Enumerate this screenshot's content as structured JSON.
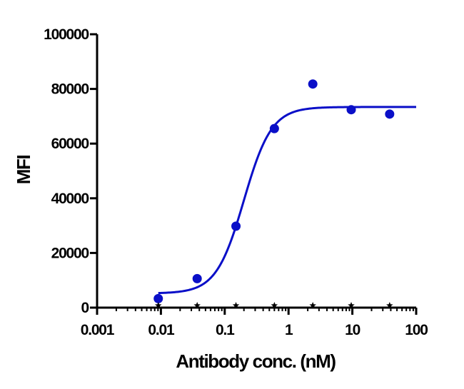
{
  "chart_data": {
    "type": "scatter",
    "title": "",
    "xlabel": "Antibody conc. (nM)",
    "ylabel": "MFI",
    "x_scale": "log",
    "xlim": [
      0.001,
      100
    ],
    "ylim": [
      0,
      100000
    ],
    "x_tick_labels": [
      "0.001",
      "0.01",
      "0.1",
      "1",
      "10",
      "100"
    ],
    "x_ticks": [
      0.001,
      0.01,
      0.1,
      1,
      10,
      100
    ],
    "y_tick_labels": [
      "0",
      "20000",
      "40000",
      "60000",
      "80000",
      "100000"
    ],
    "y_ticks": [
      0,
      20000,
      40000,
      60000,
      80000,
      100000
    ],
    "grid": false,
    "series": [
      {
        "color": "#0A0FC8",
        "points": [
          {
            "x": 0.0091,
            "y": 3300
          },
          {
            "x": 0.037,
            "y": 10600
          },
          {
            "x": 0.15,
            "y": 29800
          },
          {
            "x": 0.6,
            "y": 65500
          },
          {
            "x": 2.4,
            "y": 81800
          },
          {
            "x": 9.6,
            "y": 72400
          },
          {
            "x": 38.4,
            "y": 70800
          }
        ],
        "fit": {
          "model": "four-parameter logistic",
          "bottom": 5200,
          "top": 73400,
          "ec50": 0.2,
          "hill_slope": 2.0,
          "x_range": [
            0.0091,
            100
          ]
        }
      },
      {
        "color": "#000000",
        "marker": "star",
        "points": [
          {
            "x": 0.0091,
            "y": 0
          },
          {
            "x": 0.037,
            "y": 0
          },
          {
            "x": 0.15,
            "y": 0
          },
          {
            "x": 0.6,
            "y": 0
          },
          {
            "x": 2.4,
            "y": 0
          },
          {
            "x": 9.6,
            "y": 0
          },
          {
            "x": 38.4,
            "y": 0
          }
        ]
      }
    ]
  }
}
